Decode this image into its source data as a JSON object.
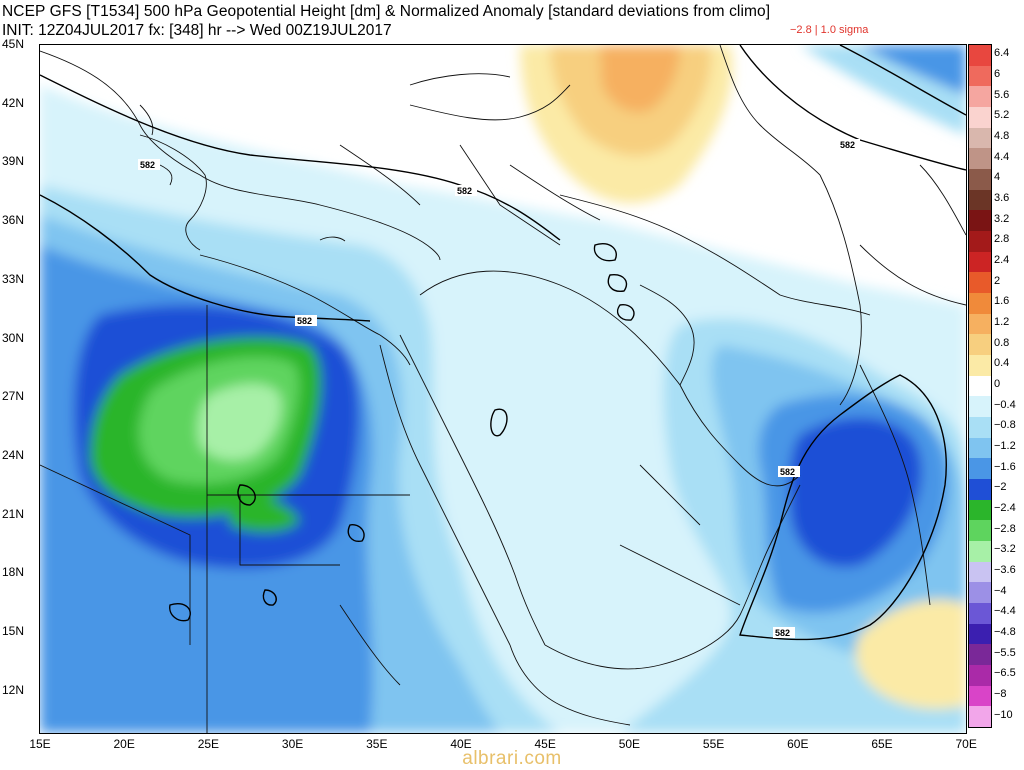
{
  "header": {
    "title": "NCEP GFS [T1534] 500 hPa Geopotential Height [dm] & Normalized Anomaly [standard deviations from climo]",
    "init_line": "INIT: 12Z04JUL2017 fx: [348] hr --> Wed 00Z19JUL2017",
    "sigma_note": "−2.8 | 1.0 sigma"
  },
  "axes": {
    "lat_labels": [
      "45N",
      "42N",
      "39N",
      "36N",
      "33N",
      "30N",
      "27N",
      "24N",
      "21N",
      "18N",
      "15N",
      "12N"
    ],
    "lon_labels": [
      "15E",
      "20E",
      "25E",
      "30E",
      "35E",
      "40E",
      "45E",
      "50E",
      "55E",
      "60E",
      "65E",
      "70E"
    ]
  },
  "contours": {
    "label": "582"
  },
  "colorbar": {
    "labels": [
      "6.4",
      "6",
      "5.6",
      "5.2",
      "4.8",
      "4.4",
      "4",
      "3.6",
      "3.2",
      "2.8",
      "2.4",
      "2",
      "1.6",
      "1.2",
      "0.8",
      "0.4",
      "0",
      "−0.4",
      "−0.8",
      "−1.2",
      "−1.6",
      "−2",
      "−2.4",
      "−2.8",
      "−3.2",
      "−3.6",
      "−4",
      "−4.4",
      "−4.8",
      "−5.5",
      "−6.5",
      "−8",
      "−10"
    ],
    "colors": [
      "#e8473f",
      "#ef6a5d",
      "#f5a6a0",
      "#fad3cf",
      "#d9b7ad",
      "#bf9487",
      "#8b5a4a",
      "#6b3526",
      "#7a1414",
      "#a31a1a",
      "#cc2424",
      "#e85a2a",
      "#f08a3a",
      "#f6b060",
      "#f7cf7f",
      "#fbeaa6",
      "#ffffff",
      "#d7f3fb",
      "#a9dff5",
      "#7fc4f0",
      "#4a96e6",
      "#1f4fd6",
      "#2bb52b",
      "#5ed45e",
      "#a7f0a7",
      "#c9c3f2",
      "#9c90e6",
      "#6b57d6",
      "#3b1fb0",
      "#7a2898",
      "#aa2aa8",
      "#d944c8",
      "#f2a6ea"
    ]
  },
  "watermark": "albrari.com"
}
